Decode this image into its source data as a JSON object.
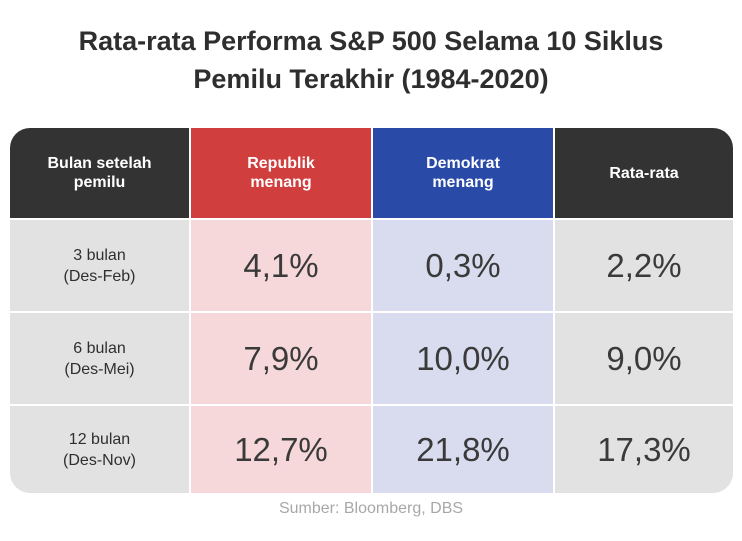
{
  "title_lines": [
    "Rata-rata Performa S&P 500 Selama 10 Siklus",
    "Pemilu Terakhir (1984-2020)"
  ],
  "colors": {
    "header_dark": "#333333",
    "header_republik": "#d03e3e",
    "header_demokrat": "#2a4aa8",
    "cell_republik": "#f6d8da",
    "cell_demokrat": "#d8dcee",
    "cell_neutral": "#e2e2e2"
  },
  "chart_data": {
    "type": "table",
    "columns": [
      {
        "key": "period",
        "label_lines": [
          "Bulan setelah",
          "pemilu"
        ]
      },
      {
        "key": "republik",
        "label_lines": [
          "Republik",
          "menang"
        ]
      },
      {
        "key": "demokrat",
        "label_lines": [
          "Demokrat",
          "menang"
        ]
      },
      {
        "key": "rata",
        "label_lines": [
          "Rata-rata"
        ]
      }
    ],
    "rows": [
      {
        "period_lines": [
          "3 bulan",
          "(Des-Feb)"
        ],
        "republik": "4,1%",
        "demokrat": "0,3%",
        "rata": "2,2%"
      },
      {
        "period_lines": [
          "6 bulan",
          "(Des-Mei)"
        ],
        "republik": "7,9%",
        "demokrat": "10,0%",
        "rata": "9,0%"
      },
      {
        "period_lines": [
          "12 bulan",
          "(Des-Nov)"
        ],
        "republik": "12,7%",
        "demokrat": "21,8%",
        "rata": "17,3%"
      }
    ]
  },
  "source": "Sumber: Bloomberg, DBS"
}
